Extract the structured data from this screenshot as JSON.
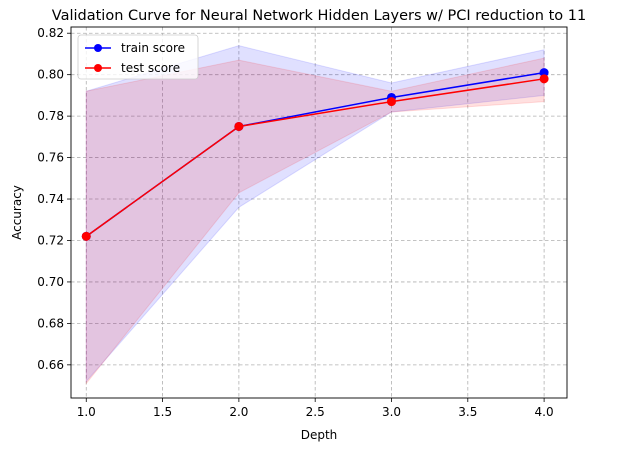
{
  "chart_data": {
    "type": "line",
    "title": "Validation Curve for Neural Network Hidden Layers w/ PCI reduction to 11",
    "xlabel": "Depth",
    "ylabel": "Accuracy",
    "x": [
      1.0,
      2.0,
      3.0,
      4.0
    ],
    "xlim": [
      0.9,
      4.15
    ],
    "ylim": [
      0.644,
      0.823
    ],
    "xticks": [
      "1.0",
      "1.5",
      "2.0",
      "2.5",
      "3.0",
      "3.5",
      "4.0"
    ],
    "yticks": [
      "0.66",
      "0.68",
      "0.70",
      "0.72",
      "0.74",
      "0.76",
      "0.78",
      "0.80",
      "0.82"
    ],
    "grid": true,
    "legend_position": "top-left",
    "series": [
      {
        "name": "train score",
        "color": "#0000ff",
        "values": [
          0.722,
          0.775,
          0.789,
          0.801
        ],
        "band_upper": [
          0.792,
          0.814,
          0.796,
          0.812
        ],
        "band_lower": [
          0.652,
          0.736,
          0.782,
          0.79
        ]
      },
      {
        "name": "test score",
        "color": "#ff0000",
        "values": [
          0.722,
          0.775,
          0.787,
          0.798
        ],
        "band_upper": [
          0.792,
          0.807,
          0.792,
          0.808
        ],
        "band_lower": [
          0.651,
          0.743,
          0.782,
          0.787
        ]
      }
    ]
  }
}
